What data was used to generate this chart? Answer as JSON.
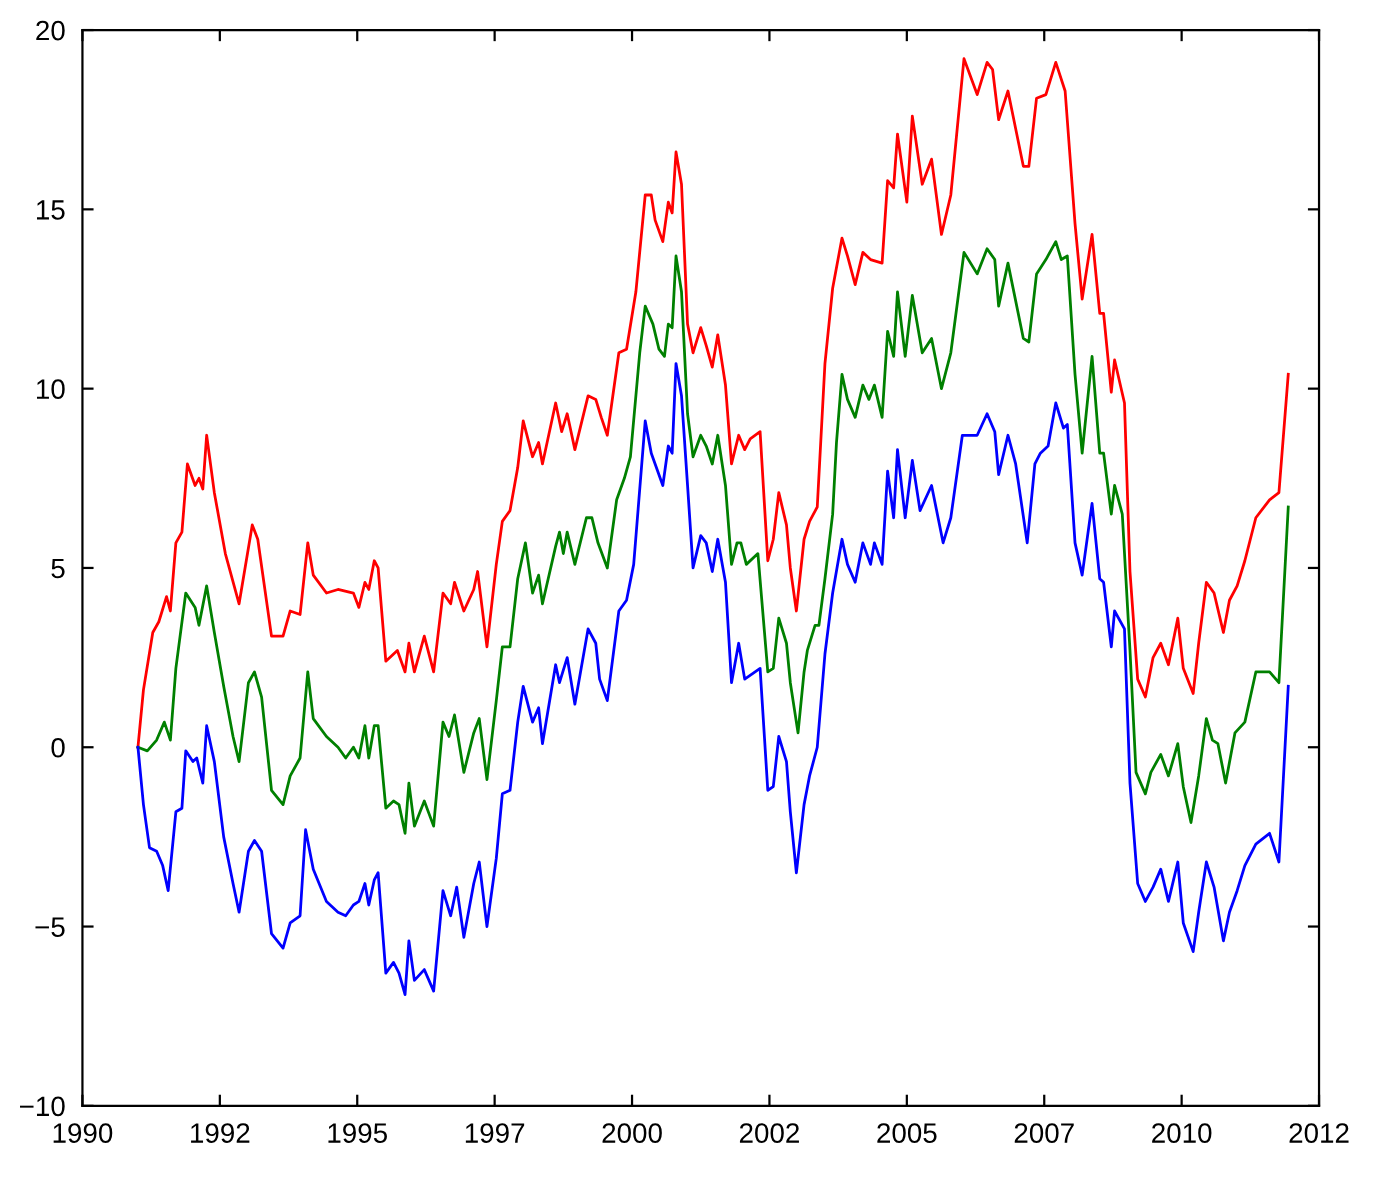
{
  "chart_data": {
    "type": "line",
    "xlim": [
      1990,
      2012.5
    ],
    "xticks": [
      {
        "value": 1990,
        "label": "1990"
      },
      {
        "value": 1992.5,
        "label": "1992"
      },
      {
        "value": 1995,
        "label": "1995"
      },
      {
        "value": 1997.5,
        "label": "1997"
      },
      {
        "value": 2000,
        "label": "2000"
      },
      {
        "value": 2002.5,
        "label": "2002"
      },
      {
        "value": 2005,
        "label": "2005"
      },
      {
        "value": 2007.5,
        "label": "2007"
      },
      {
        "value": 2010,
        "label": "2010"
      },
      {
        "value": 2012.5,
        "label": "2012"
      }
    ],
    "ylim": [
      -10,
      20
    ],
    "yticks": [
      {
        "value": -10,
        "label": "−10"
      },
      {
        "value": -5,
        "label": "−5"
      },
      0,
      5,
      10,
      15,
      20
    ],
    "grid": false,
    "marker": "none",
    "line_style": "solid",
    "series": [
      {
        "color": "#ff0000",
        "x": [
          1991.01,
          1991.11,
          1991.28,
          1991.39,
          1991.53,
          1991.6,
          1991.7,
          1991.81,
          1991.91,
          1992.05,
          1992.12,
          1992.19,
          1992.26,
          1992.4,
          1992.6,
          1992.85,
          1993.09,
          1993.19,
          1993.44,
          1993.65,
          1993.78,
          1993.96,
          1994.1,
          1994.2,
          1994.44,
          1994.65,
          1994.93,
          1995.03,
          1995.14,
          1995.21,
          1995.31,
          1995.38,
          1995.52,
          1995.73,
          1995.87,
          1995.94,
          1996.04,
          1996.22,
          1996.39,
          1996.56,
          1996.7,
          1996.77,
          1996.94,
          1997.12,
          1997.19,
          1997.36,
          1997.53,
          1997.64,
          1997.78,
          1997.92,
          1998.02,
          1998.19,
          1998.3,
          1998.37,
          1998.61,
          1998.72,
          1998.82,
          1998.96,
          1999.2,
          1999.34,
          1999.44,
          1999.55,
          1999.76,
          1999.9,
          2000.07,
          2000.24,
          2000.35,
          2000.42,
          2000.56,
          2000.66,
          2000.73,
          2000.8,
          2000.9,
          2001.01,
          2001.11,
          2001.25,
          2001.35,
          2001.46,
          2001.56,
          2001.7,
          2001.81,
          2001.94,
          2002.05,
          2002.15,
          2002.33,
          2002.47,
          2002.57,
          2002.67,
          2002.81,
          2002.88,
          2002.99,
          2003.13,
          2003.23,
          2003.37,
          2003.51,
          2003.65,
          2003.82,
          2003.92,
          2004.06,
          2004.2,
          2004.34,
          2004.55,
          2004.65,
          2004.76,
          2004.83,
          2005.0,
          2005.1,
          2005.28,
          2005.45,
          2005.63,
          2005.8,
          2006.04,
          2006.28,
          2006.46,
          2006.56,
          2006.67,
          2006.84,
          2007.12,
          2007.22,
          2007.36,
          2007.53,
          2007.71,
          2007.88,
          2008.06,
          2008.19,
          2008.37,
          2008.51,
          2008.58,
          2008.72,
          2008.78,
          2008.96,
          2009.06,
          2009.2,
          2009.34,
          2009.48,
          2009.62,
          2009.76,
          2009.93,
          2010.03,
          2010.21,
          2010.31,
          2010.45,
          2010.59,
          2010.76,
          2010.87,
          2011.01,
          2011.15,
          2011.35,
          2011.6,
          2011.77,
          2011.94
        ],
        "values": [
          0.0,
          1.6,
          3.2,
          3.5,
          4.2,
          3.8,
          5.7,
          6.0,
          7.9,
          7.3,
          7.5,
          7.2,
          8.7,
          7.1,
          5.4,
          4.0,
          6.2,
          5.8,
          3.1,
          3.1,
          3.8,
          3.7,
          5.7,
          4.8,
          4.3,
          4.4,
          4.3,
          3.9,
          4.6,
          4.4,
          5.2,
          5.0,
          2.4,
          2.7,
          2.1,
          2.9,
          2.1,
          3.1,
          2.1,
          4.3,
          4.0,
          4.6,
          3.8,
          4.4,
          4.9,
          2.8,
          5.1,
          6.3,
          6.6,
          7.8,
          9.1,
          8.1,
          8.5,
          7.9,
          9.6,
          8.8,
          9.3,
          8.3,
          9.8,
          9.7,
          9.2,
          8.7,
          11.0,
          11.1,
          12.7,
          15.4,
          15.4,
          14.7,
          14.1,
          15.2,
          14.9,
          16.6,
          15.7,
          11.8,
          11.0,
          11.7,
          11.2,
          10.6,
          11.5,
          10.1,
          7.9,
          8.7,
          8.3,
          8.6,
          8.8,
          5.2,
          5.8,
          7.1,
          6.2,
          5.0,
          3.8,
          5.8,
          6.3,
          6.7,
          10.7,
          12.8,
          14.2,
          13.7,
          12.9,
          13.8,
          13.6,
          13.5,
          15.8,
          15.6,
          17.1,
          15.2,
          17.6,
          15.7,
          16.4,
          14.3,
          15.4,
          19.2,
          18.2,
          19.1,
          18.9,
          17.5,
          18.3,
          16.2,
          16.2,
          18.1,
          18.2,
          19.1,
          18.3,
          14.6,
          12.5,
          14.3,
          12.1,
          12.1,
          9.9,
          10.8,
          9.6,
          4.9,
          1.9,
          1.4,
          2.5,
          2.9,
          2.3,
          3.6,
          2.2,
          1.5,
          2.9,
          4.6,
          4.3,
          3.2,
          4.1,
          4.5,
          5.2,
          6.4,
          6.9,
          7.1,
          10.4
        ]
      },
      {
        "color": "#008000",
        "x": [
          1991.01,
          1991.18,
          1991.35,
          1991.49,
          1991.6,
          1991.7,
          1991.88,
          1992.05,
          1992.12,
          1992.26,
          1992.4,
          1992.57,
          1992.74,
          1992.85,
          1993.02,
          1993.13,
          1993.26,
          1993.44,
          1993.65,
          1993.78,
          1993.96,
          1994.1,
          1994.2,
          1994.44,
          1994.65,
          1994.79,
          1994.93,
          1995.03,
          1995.14,
          1995.21,
          1995.31,
          1995.38,
          1995.52,
          1995.66,
          1995.76,
          1995.87,
          1995.94,
          1996.04,
          1996.22,
          1996.39,
          1996.56,
          1996.67,
          1996.77,
          1996.94,
          1997.12,
          1997.22,
          1997.36,
          1997.53,
          1997.64,
          1997.78,
          1997.92,
          1998.06,
          1998.19,
          1998.3,
          1998.37,
          1998.61,
          1998.68,
          1998.75,
          1998.82,
          1998.96,
          1999.17,
          1999.27,
          1999.38,
          1999.55,
          1999.72,
          1999.86,
          1999.97,
          2000.14,
          2000.24,
          2000.38,
          2000.49,
          2000.59,
          2000.66,
          2000.73,
          2000.8,
          2000.9,
          2001.01,
          2001.11,
          2001.25,
          2001.35,
          2001.46,
          2001.56,
          2001.7,
          2001.81,
          2001.91,
          2001.98,
          2002.08,
          2002.29,
          2002.47,
          2002.57,
          2002.67,
          2002.81,
          2002.88,
          2003.02,
          2003.13,
          2003.19,
          2003.33,
          2003.4,
          2003.51,
          2003.65,
          2003.72,
          2003.82,
          2003.92,
          2004.06,
          2004.2,
          2004.31,
          2004.41,
          2004.55,
          2004.65,
          2004.76,
          2004.83,
          2004.97,
          2005.1,
          2005.28,
          2005.45,
          2005.63,
          2005.8,
          2006.04,
          2006.28,
          2006.46,
          2006.6,
          2006.67,
          2006.84,
          2007.12,
          2007.22,
          2007.36,
          2007.53,
          2007.71,
          2007.81,
          2007.92,
          2008.06,
          2008.19,
          2008.37,
          2008.51,
          2008.58,
          2008.72,
          2008.78,
          2008.92,
          2009.06,
          2009.17,
          2009.34,
          2009.44,
          2009.62,
          2009.76,
          2009.93,
          2010.03,
          2010.17,
          2010.31,
          2010.45,
          2010.56,
          2010.66,
          2010.8,
          2010.97,
          2011.15,
          2011.35,
          2011.6,
          2011.77,
          2011.94
        ],
        "values": [
          0.0,
          -0.1,
          0.2,
          0.7,
          0.2,
          2.2,
          4.3,
          3.9,
          3.4,
          4.5,
          3.2,
          1.7,
          0.3,
          -0.4,
          1.8,
          2.1,
          1.4,
          -1.2,
          -1.6,
          -0.8,
          -0.3,
          2.1,
          0.8,
          0.3,
          0.0,
          -0.3,
          0.0,
          -0.3,
          0.6,
          -0.3,
          0.6,
          0.6,
          -1.7,
          -1.5,
          -1.6,
          -2.4,
          -1.0,
          -2.2,
          -1.5,
          -2.2,
          0.7,
          0.3,
          0.9,
          -0.7,
          0.4,
          0.8,
          -0.9,
          1.3,
          2.8,
          2.8,
          4.7,
          5.7,
          4.3,
          4.8,
          4.0,
          5.6,
          6.0,
          5.4,
          6.0,
          5.1,
          6.4,
          6.4,
          5.7,
          5.0,
          6.9,
          7.5,
          8.1,
          11.0,
          12.3,
          11.8,
          11.1,
          10.9,
          11.8,
          11.7,
          13.7,
          12.7,
          9.3,
          8.1,
          8.7,
          8.4,
          7.9,
          8.7,
          7.3,
          5.1,
          5.7,
          5.7,
          5.1,
          5.4,
          2.1,
          2.2,
          3.6,
          2.9,
          1.8,
          0.4,
          2.1,
          2.7,
          3.4,
          3.4,
          4.7,
          6.5,
          8.5,
          10.4,
          9.7,
          9.2,
          10.1,
          9.7,
          10.1,
          9.2,
          11.6,
          10.9,
          12.7,
          10.9,
          12.6,
          11.0,
          11.4,
          10.0,
          11.0,
          13.8,
          13.2,
          13.9,
          13.6,
          12.3,
          13.5,
          11.4,
          11.3,
          13.2,
          13.6,
          14.1,
          13.6,
          13.7,
          10.4,
          8.2,
          10.9,
          8.2,
          8.2,
          6.5,
          7.3,
          6.5,
          2.7,
          -0.7,
          -1.3,
          -0.7,
          -0.2,
          -0.8,
          0.1,
          -1.1,
          -2.1,
          -0.8,
          0.8,
          0.2,
          0.1,
          -1.0,
          0.4,
          0.7,
          2.1,
          2.1,
          1.8,
          6.7
        ]
      },
      {
        "color": "#0000ff",
        "x": [
          1991.01,
          1991.11,
          1991.22,
          1991.35,
          1991.46,
          1991.56,
          1991.7,
          1991.81,
          1991.88,
          1992.01,
          1992.08,
          1992.19,
          1992.26,
          1992.4,
          1992.57,
          1992.74,
          1992.85,
          1993.02,
          1993.13,
          1993.26,
          1993.44,
          1993.65,
          1993.78,
          1993.96,
          1994.06,
          1994.2,
          1994.44,
          1994.65,
          1994.79,
          1994.93,
          1995.03,
          1995.14,
          1995.21,
          1995.31,
          1995.38,
          1995.52,
          1995.66,
          1995.76,
          1995.87,
          1995.94,
          1996.04,
          1996.22,
          1996.39,
          1996.56,
          1996.7,
          1996.81,
          1996.94,
          1997.12,
          1997.22,
          1997.36,
          1997.53,
          1997.64,
          1997.78,
          1997.92,
          1998.02,
          1998.19,
          1998.3,
          1998.37,
          1998.61,
          1998.68,
          1998.82,
          1998.96,
          1999.2,
          1999.34,
          1999.41,
          1999.55,
          1999.76,
          1999.9,
          2000.03,
          2000.24,
          2000.35,
          2000.56,
          2000.66,
          2000.73,
          2000.8,
          2000.9,
          2001.01,
          2001.11,
          2001.25,
          2001.35,
          2001.46,
          2001.56,
          2001.7,
          2001.81,
          2001.94,
          2002.05,
          2002.33,
          2002.47,
          2002.57,
          2002.67,
          2002.81,
          2002.88,
          2002.99,
          2003.13,
          2003.23,
          2003.37,
          2003.51,
          2003.65,
          2003.82,
          2003.92,
          2004.06,
          2004.2,
          2004.34,
          2004.41,
          2004.55,
          2004.65,
          2004.76,
          2004.83,
          2004.97,
          2005.1,
          2005.24,
          2005.45,
          2005.66,
          2005.8,
          2006.01,
          2006.28,
          2006.46,
          2006.6,
          2006.67,
          2006.84,
          2006.98,
          2007.19,
          2007.33,
          2007.43,
          2007.57,
          2007.71,
          2007.85,
          2007.92,
          2008.06,
          2008.19,
          2008.37,
          2008.51,
          2008.58,
          2008.72,
          2008.78,
          2008.96,
          2009.06,
          2009.2,
          2009.34,
          2009.48,
          2009.62,
          2009.76,
          2009.93,
          2010.03,
          2010.21,
          2010.31,
          2010.45,
          2010.59,
          2010.76,
          2010.87,
          2011.01,
          2011.15,
          2011.35,
          2011.6,
          2011.77,
          2011.94
        ],
        "values": [
          0.0,
          -1.6,
          -2.8,
          -2.9,
          -3.3,
          -4.0,
          -1.8,
          -1.7,
          -0.1,
          -0.4,
          -0.3,
          -1.0,
          0.6,
          -0.4,
          -2.5,
          -3.8,
          -4.6,
          -2.9,
          -2.6,
          -2.9,
          -5.2,
          -5.6,
          -4.9,
          -4.7,
          -2.3,
          -3.4,
          -4.3,
          -4.6,
          -4.7,
          -4.4,
          -4.3,
          -3.8,
          -4.4,
          -3.7,
          -3.5,
          -6.3,
          -6.0,
          -6.3,
          -6.9,
          -5.4,
          -6.5,
          -6.2,
          -6.8,
          -4.0,
          -4.7,
          -3.9,
          -5.3,
          -3.8,
          -3.2,
          -5.0,
          -3.1,
          -1.3,
          -1.2,
          0.7,
          1.7,
          0.7,
          1.1,
          0.1,
          2.3,
          1.8,
          2.5,
          1.2,
          3.3,
          2.9,
          1.9,
          1.3,
          3.8,
          4.1,
          5.1,
          9.1,
          8.2,
          7.3,
          8.4,
          8.2,
          10.7,
          9.8,
          7.3,
          5.0,
          5.9,
          5.7,
          4.9,
          5.8,
          4.6,
          1.8,
          2.9,
          1.9,
          2.2,
          -1.2,
          -1.1,
          0.3,
          -0.4,
          -1.8,
          -3.5,
          -1.6,
          -0.8,
          0.0,
          2.6,
          4.3,
          5.8,
          5.1,
          4.6,
          5.7,
          5.1,
          5.7,
          5.1,
          7.7,
          6.4,
          8.3,
          6.4,
          8.0,
          6.6,
          7.3,
          5.7,
          6.4,
          8.7,
          8.7,
          9.3,
          8.8,
          7.6,
          8.7,
          7.9,
          5.7,
          7.9,
          8.2,
          8.4,
          9.6,
          8.9,
          9.0,
          5.7,
          4.8,
          6.8,
          4.7,
          4.6,
          2.8,
          3.8,
          3.3,
          -1.0,
          -3.8,
          -4.3,
          -3.9,
          -3.4,
          -4.3,
          -3.2,
          -4.9,
          -5.7,
          -4.6,
          -3.2,
          -3.9,
          -5.4,
          -4.6,
          -4.0,
          -3.3,
          -2.7,
          -2.4,
          -3.2,
          1.7
        ]
      }
    ]
  }
}
